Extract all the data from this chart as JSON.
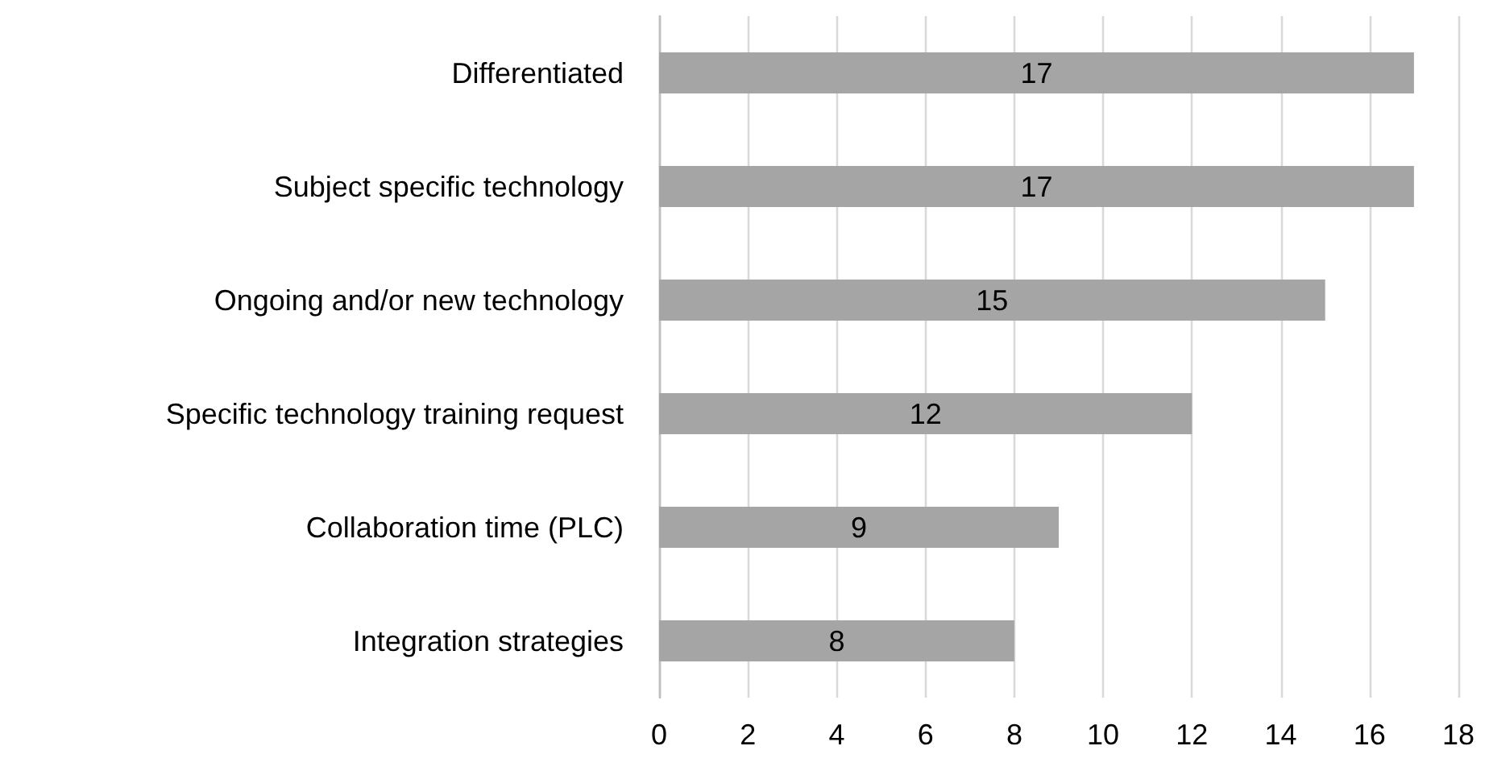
{
  "chart_data": {
    "type": "bar",
    "orientation": "horizontal",
    "categories": [
      "Differentiated",
      "Subject specific technology",
      "Ongoing and/or new technology",
      "Specific technology training request",
      "Collaboration time (PLC)",
      "Integration strategies"
    ],
    "values": [
      17,
      17,
      15,
      12,
      9,
      8
    ],
    "color": "#a5a5a5",
    "xlim": [
      0,
      18
    ],
    "xticks": [
      0,
      2,
      4,
      6,
      8,
      10,
      12,
      14,
      16,
      18
    ],
    "grid": "x",
    "data_labels": true
  }
}
